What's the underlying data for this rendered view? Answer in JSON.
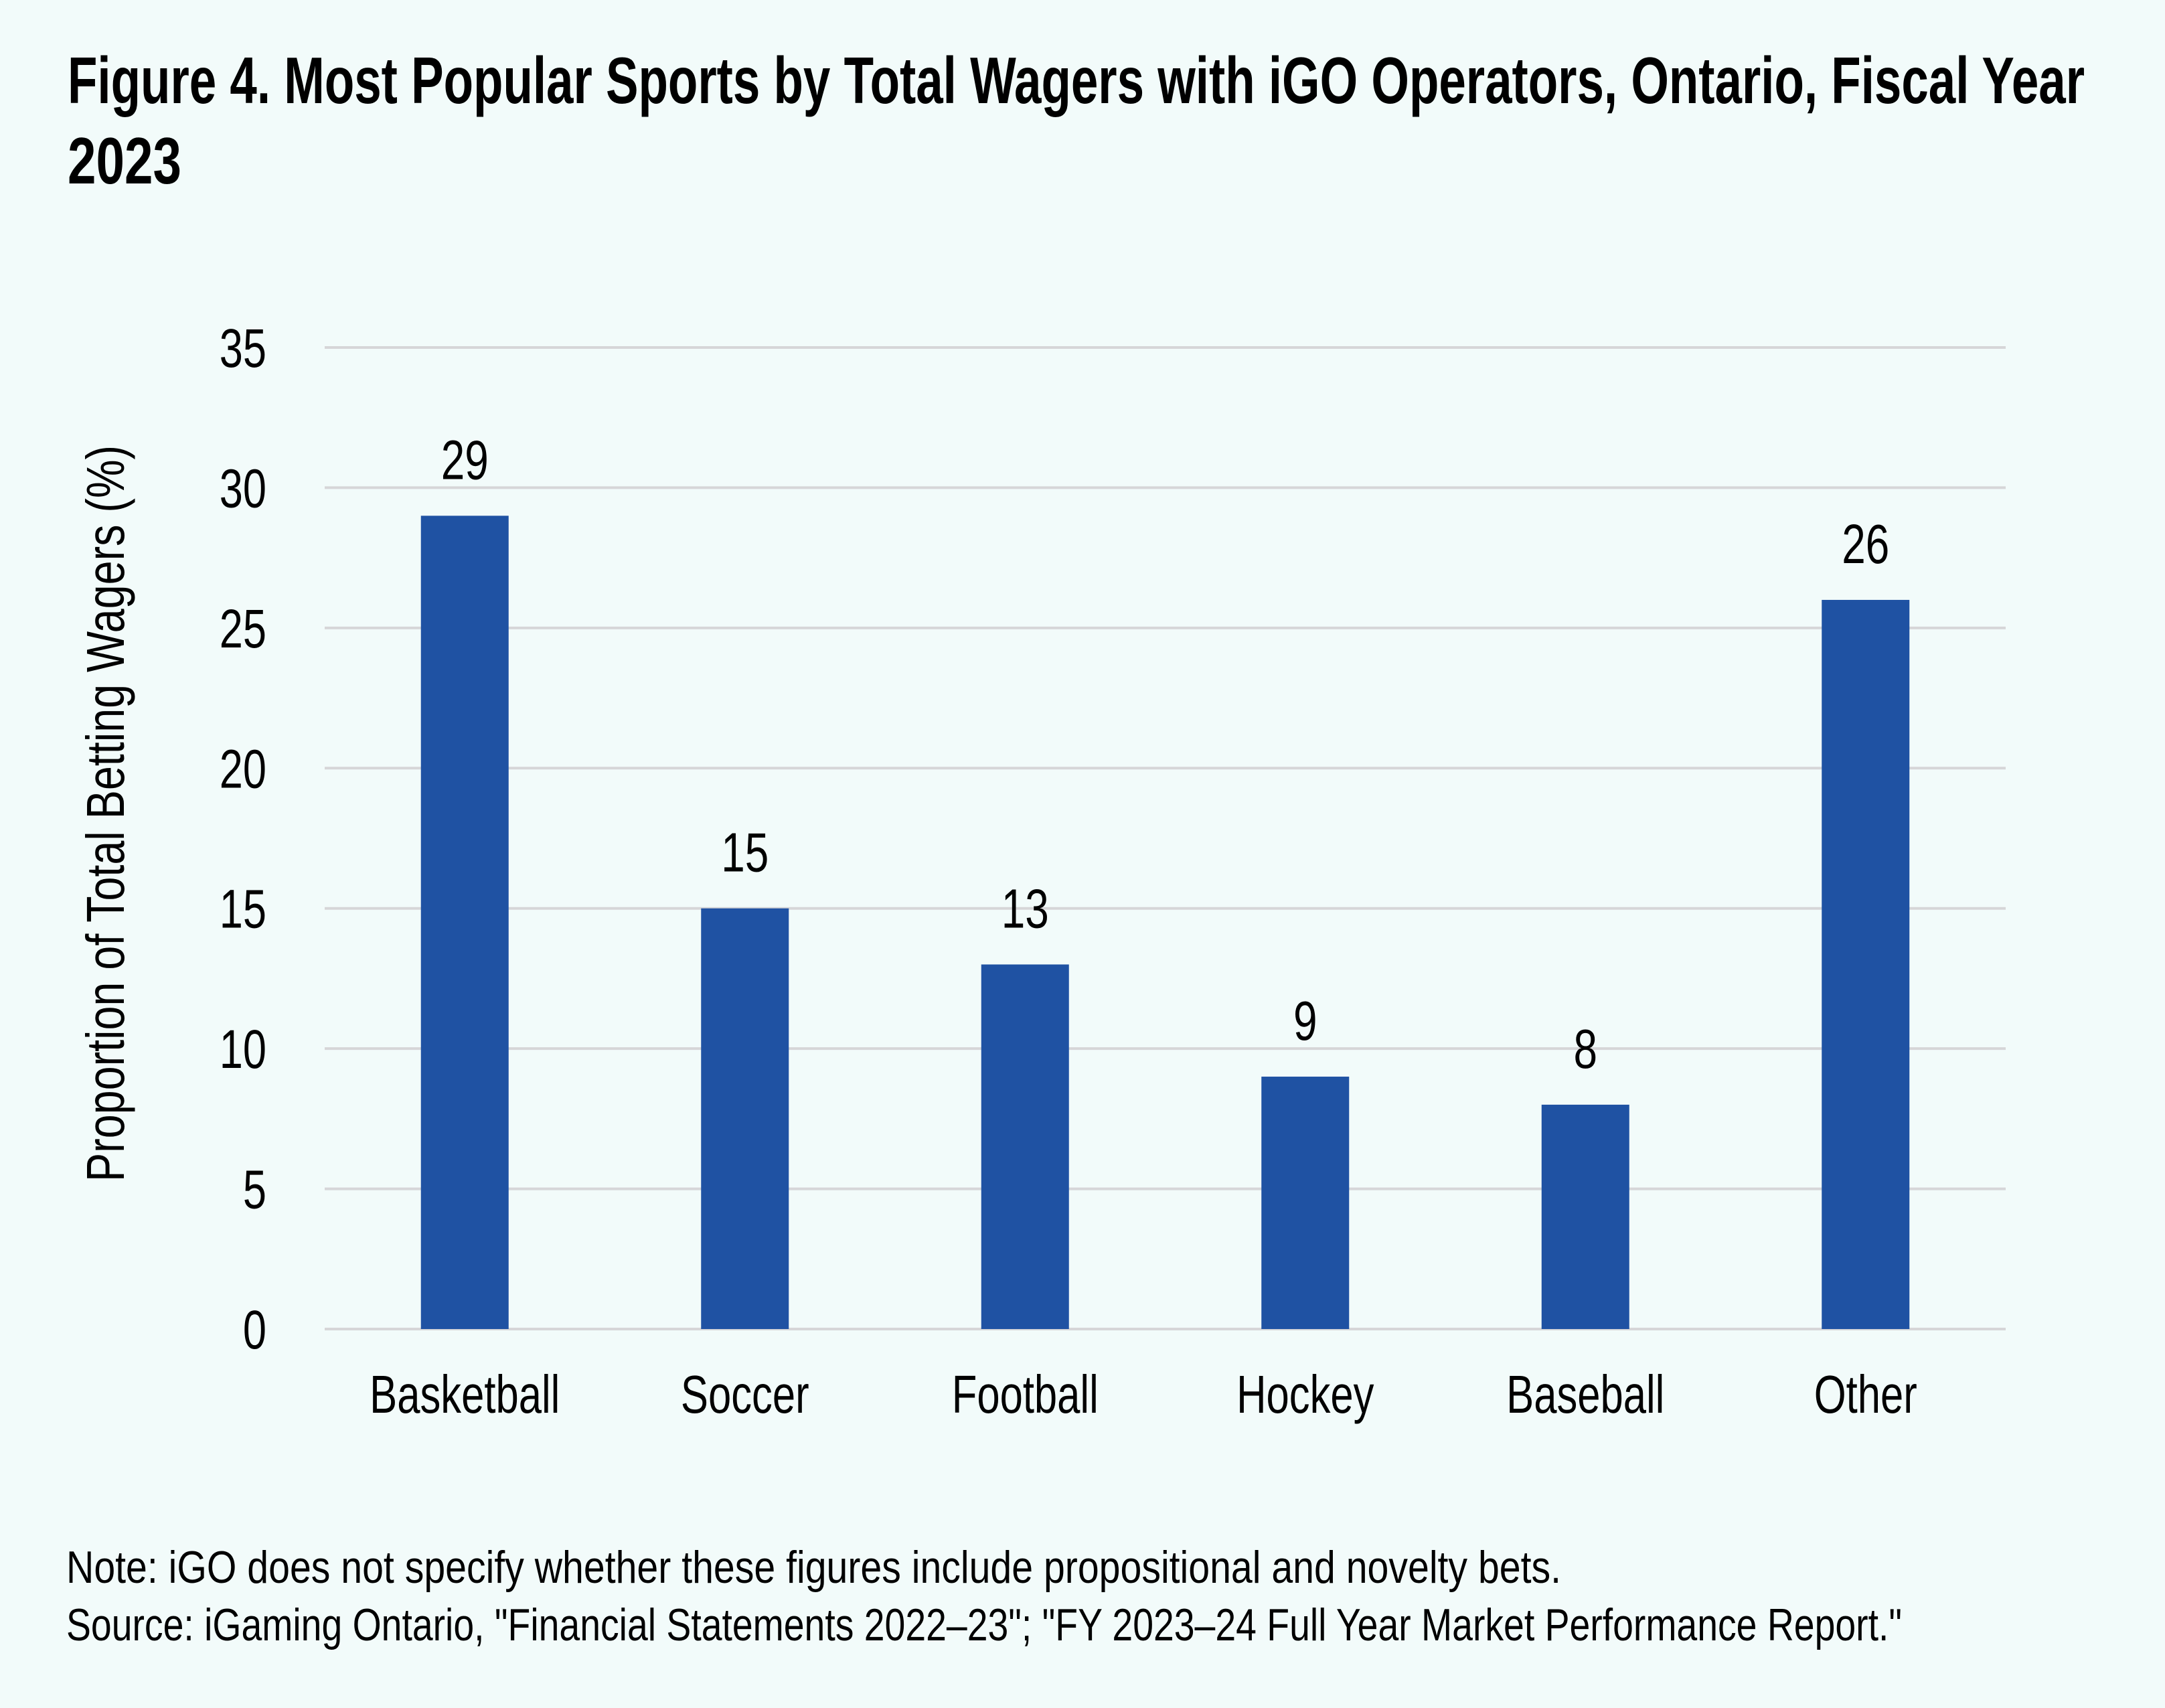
{
  "colors": {
    "background": "#F2FBFA",
    "bar": "#1F52A3",
    "gridline": "#D6D6D8",
    "text": "#000000"
  },
  "title": {
    "line1": "Figure 4. Most Popular Sports by Total Wagers with iGO Operators, Ontario, Fiscal Year",
    "line2": "2023"
  },
  "footer": {
    "note": "Note: iGO does not specify whether these figures include propositional and novelty bets.",
    "source": "Source: iGaming Ontario, \"Financial Statements 2022–23\"; \"FY 2023–24 Full Year Market Performance Report.\""
  },
  "chart_data": {
    "type": "bar",
    "title": "Figure 4. Most Popular Sports by Total Wagers with iGO Operators, Ontario, Fiscal Year 2023",
    "xlabel": "",
    "ylabel": "Proportion of Total Betting Wagers (%)",
    "categories": [
      "Basketball",
      "Soccer",
      "Football",
      "Hockey",
      "Baseball",
      "Other"
    ],
    "values": [
      29,
      15,
      13,
      9,
      8,
      26
    ],
    "data_labels": [
      "29",
      "15",
      "13",
      "9",
      "8",
      "26"
    ],
    "ylim": [
      0,
      35
    ],
    "yticks": [
      0,
      5,
      10,
      15,
      20,
      25,
      30,
      35
    ],
    "ytick_labels": [
      "0",
      "5",
      "10",
      "15",
      "20",
      "25",
      "30",
      "35"
    ],
    "grid": true,
    "legend": "none"
  }
}
